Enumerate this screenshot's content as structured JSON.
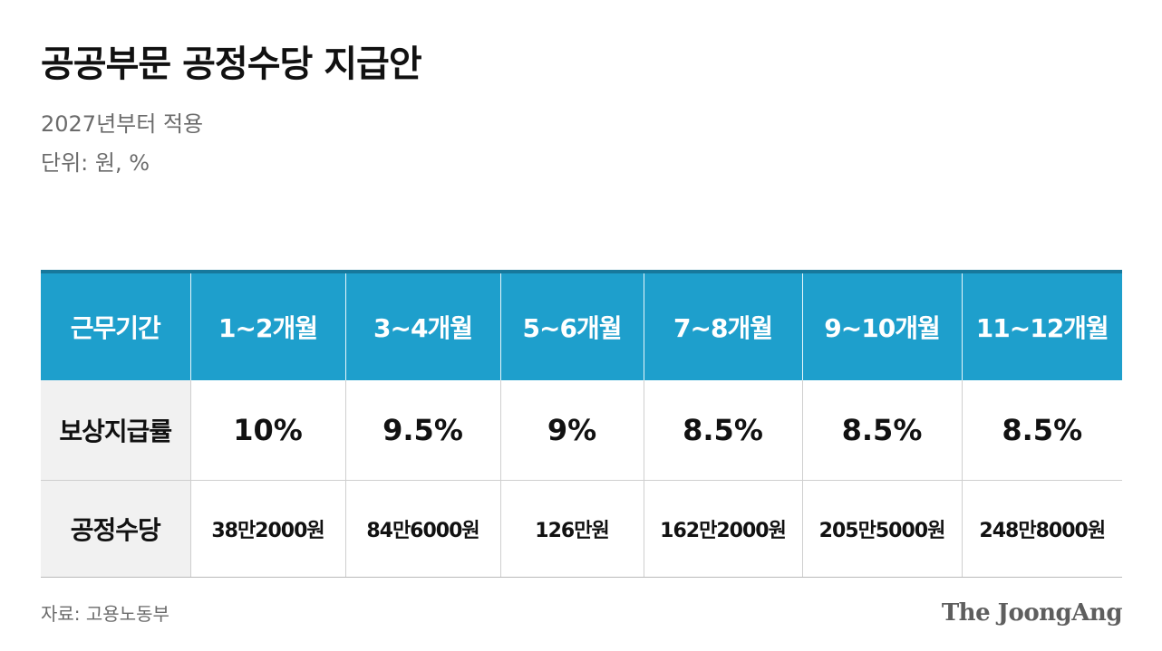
{
  "header": {
    "title": "공공부문 공정수당 지급안",
    "subtitle": "2027년부터 적용",
    "unit": "단위: 원, %"
  },
  "table": {
    "columns": [
      "근무기간",
      "1~2개월",
      "3~4개월",
      "5~6개월",
      "7~8개월",
      "9~10개월",
      "11~12개월"
    ],
    "rows": [
      {
        "label": "보상지급률",
        "values": [
          "10%",
          "9.5%",
          "9%",
          "8.5%",
          "8.5%",
          "8.5%"
        ]
      },
      {
        "label": "공정수당",
        "values": [
          "38만2000원",
          "84만6000원",
          "126만원",
          "162만2000원",
          "205만5000원",
          "248만8000원"
        ]
      }
    ]
  },
  "footer": {
    "source": "자료: 고용노동부",
    "brand": "The JoongAng"
  },
  "colors": {
    "header_bg": "#1e9fcc",
    "row_label_bg": "#f1f1f1",
    "text": "#111111",
    "muted_text": "#6b6b6b"
  }
}
